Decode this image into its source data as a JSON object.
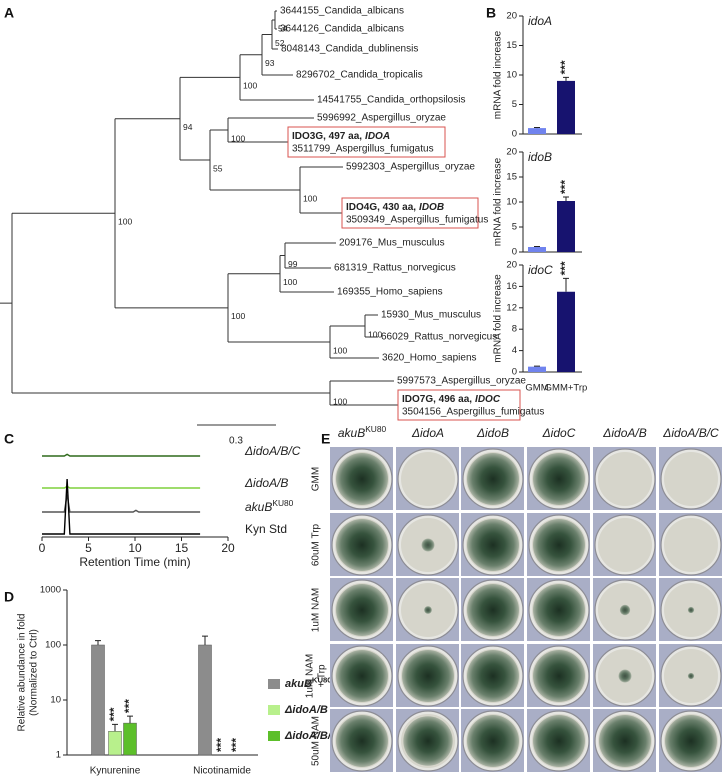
{
  "panels": [
    "A",
    "B",
    "C",
    "D",
    "E"
  ],
  "tree": {
    "leaves": [
      "3644155_Candida_albicans",
      "3644126_Candida_albicans",
      "8048143_Candida_dublinensis",
      "8296702_Candida_tropicalis",
      "14541755_Candida_orthopsilosis",
      "5996992_Aspergillus_oryzae",
      "5992303_Aspergillus_oryzae",
      "209176_Mus_musculus",
      "681319_Rattus_norvegicus",
      "169355_Homo_sapiens",
      "15930_Mus_musculus",
      "66029_Rattus_norvegicus",
      "3620_Homo_sapiens",
      "5997573_Aspergillus_oryzae"
    ],
    "boxed": [
      {
        "gene_line": "IDO3G, 497 aa,",
        "gene": "IDOA",
        "species": "3511799_Aspergillus_fumigatus"
      },
      {
        "gene_line": "IDO4G, 430 aa,",
        "gene": "IDOB",
        "species": "3509349_Aspergillus_fumigatus"
      },
      {
        "gene_line": "IDO7G, 496 aa,",
        "gene": "IDOC",
        "species": "3504156_Aspergillus_fumigatus"
      }
    ],
    "bootstrap": [
      54,
      52,
      93,
      100,
      94,
      100,
      55,
      100,
      99,
      100,
      100,
      100,
      100,
      100,
      100
    ],
    "scale_label": "0.3"
  },
  "chart_data": [
    {
      "type": "bar",
      "gene": "idoA",
      "ylabel": "mRNA fold increase",
      "categories": [
        null,
        null
      ],
      "values": [
        1,
        9
      ],
      "errors": [
        0.1,
        0.6
      ],
      "colors": [
        "#7083ee",
        "#17136f"
      ],
      "significance": [
        null,
        "***"
      ],
      "ylim": [
        0,
        20
      ],
      "yticks": [
        0,
        5,
        10,
        15,
        20
      ]
    },
    {
      "type": "bar",
      "gene": "idoB",
      "ylabel": "mRNA fold increase",
      "categories": [
        null,
        null
      ],
      "values": [
        1,
        10.2
      ],
      "errors": [
        0.1,
        0.8
      ],
      "colors": [
        "#7083ee",
        "#17136f"
      ],
      "significance": [
        null,
        "***"
      ],
      "ylim": [
        0,
        20
      ],
      "yticks": [
        0,
        5,
        10,
        15,
        20
      ]
    },
    {
      "type": "bar",
      "gene": "idoC",
      "ylabel": "mRNA fold increase",
      "categories": [
        "GMM",
        "GMM+Trp"
      ],
      "values": [
        1,
        15
      ],
      "errors": [
        0.1,
        2.5
      ],
      "colors": [
        "#7083ee",
        "#17136f"
      ],
      "significance": [
        null,
        "***"
      ],
      "ylim": [
        0,
        20
      ],
      "yticks": [
        0,
        4,
        8,
        12,
        16,
        20
      ]
    },
    {
      "type": "chromatogram",
      "xlabel": "Retention Time (min)",
      "xlim": [
        0,
        20
      ],
      "xticks": [
        0,
        5,
        10,
        15,
        20
      ],
      "x": [
        0,
        2.4,
        2.7,
        3.0,
        9.8,
        10.1,
        10.4,
        17
      ],
      "series": [
        {
          "name": "ΔidoA/B/C",
          "italic": true,
          "color": "#2f6a1c",
          "values": [
            0,
            0,
            0.03,
            0,
            0,
            0,
            0,
            0
          ]
        },
        {
          "name": "ΔidoA/B",
          "italic": true,
          "color": "#7fd03b",
          "values": [
            0,
            0,
            0.03,
            0,
            0,
            0,
            0,
            0
          ]
        },
        {
          "name": "akuB",
          "superscript": "KU80",
          "italic": true,
          "color": "#555555",
          "values": [
            0,
            0,
            0.32,
            0,
            0,
            0.03,
            0,
            0
          ]
        },
        {
          "name": "Kyn Std",
          "italic": false,
          "color": "#000000",
          "values": [
            0,
            0,
            1,
            0,
            0,
            0,
            0,
            0
          ]
        }
      ]
    },
    {
      "type": "bar",
      "log": true,
      "ylabel": "Relative abundance in fold",
      "ylabel2": "(Normalized to Ctrl)",
      "categories": [
        "Kynurenine",
        "Nicotinamide"
      ],
      "series": [
        {
          "name": "akuB",
          "superscript": "KU80",
          "italic": true,
          "color": "#8c8c8c",
          "values": [
            100,
            100
          ],
          "errors": [
            20,
            45
          ]
        },
        {
          "name": "ΔidoA/B",
          "italic": true,
          "color": "#b8f08c",
          "values": [
            2.7,
            null
          ],
          "errors": [
            0.9,
            null
          ],
          "significance": [
            "***",
            "***"
          ]
        },
        {
          "name": "ΔidoA/B/C",
          "italic": true,
          "color": "#5cbf2a",
          "values": [
            3.8,
            null
          ],
          "errors": [
            1.3,
            null
          ],
          "significance": [
            "***",
            "***"
          ]
        }
      ],
      "ylim": [
        1,
        1000
      ],
      "yticks": [
        1,
        10,
        100,
        1000
      ]
    }
  ],
  "plates": {
    "columns": [
      {
        "name": "akuB",
        "superscript": "KU80",
        "italic": true
      },
      {
        "name": "ΔidoA",
        "italic": true
      },
      {
        "name": "ΔidoB",
        "italic": true
      },
      {
        "name": "ΔidoC",
        "italic": true
      },
      {
        "name": "ΔidoA/B",
        "italic": true
      },
      {
        "name": "ΔidoA/B/C",
        "italic": true
      }
    ],
    "rows": [
      [
        "GMM"
      ],
      [
        "60uM Trp"
      ],
      [
        "1uM NAM"
      ],
      [
        "1uM NAM",
        "+ Trp"
      ],
      [
        "50uM NAM"
      ]
    ]
  }
}
